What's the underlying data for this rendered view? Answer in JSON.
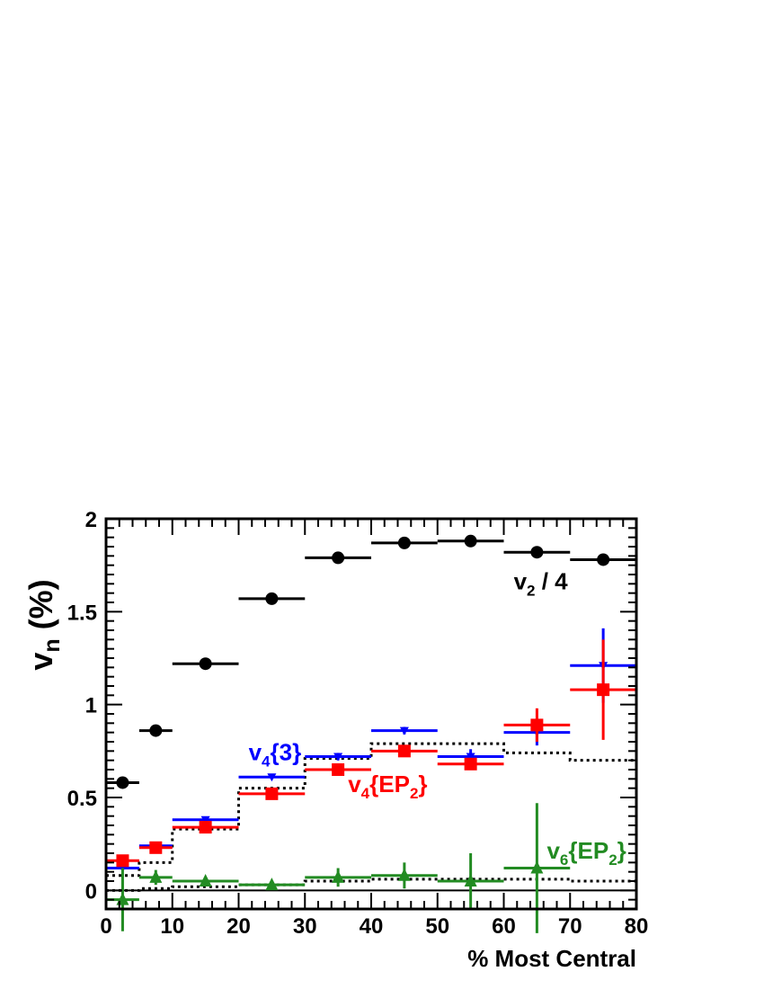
{
  "chart_data": {
    "type": "scatter",
    "xlabel": "% Most Central",
    "ylabel": "v",
    "ylabel_sub": "n",
    "ylabel_unit": " (%)",
    "xlim": [
      0,
      80
    ],
    "ylim": [
      -0.1,
      2.0
    ],
    "x_ticks": [
      0,
      10,
      20,
      30,
      40,
      50,
      60,
      70,
      80
    ],
    "x_tick_labels": [
      "0",
      "10",
      "20",
      "30",
      "40",
      "50",
      "60",
      "70",
      "80"
    ],
    "y_ticks": [
      0,
      0.5,
      1,
      1.5,
      2
    ],
    "y_tick_labels": [
      "0",
      "0.5",
      "1",
      "1.5",
      "2"
    ],
    "zero_line": true,
    "series": [
      {
        "key": "v2",
        "color": "#000000",
        "marker": "circle",
        "x": [
          2.5,
          7.5,
          15,
          25,
          35,
          45,
          55,
          65,
          75
        ],
        "xlo": [
          0,
          5,
          10,
          20,
          30,
          40,
          50,
          60,
          70
        ],
        "xhi": [
          5,
          10,
          20,
          30,
          40,
          50,
          60,
          70,
          80
        ],
        "y": [
          0.58,
          0.86,
          1.22,
          1.57,
          1.79,
          1.87,
          1.88,
          1.82,
          1.78
        ],
        "yerr": [
          0,
          0,
          0,
          0,
          0,
          0,
          0,
          0,
          0
        ]
      },
      {
        "key": "v4_3",
        "color": "#0000ff",
        "marker": "triangle-down",
        "x": [
          2.5,
          7.5,
          15,
          25,
          35,
          45,
          55,
          65,
          75
        ],
        "xlo": [
          0,
          5,
          10,
          20,
          30,
          40,
          50,
          60,
          70
        ],
        "xhi": [
          5,
          10,
          20,
          30,
          40,
          50,
          60,
          70,
          80
        ],
        "y": [
          0.12,
          0.24,
          0.38,
          0.61,
          0.72,
          0.86,
          0.72,
          0.85,
          1.21
        ],
        "yerr": [
          0,
          0,
          0,
          0,
          0.02,
          0.02,
          0.04,
          0.07,
          0.2
        ]
      },
      {
        "key": "v4_ep2",
        "color": "#ff0000",
        "marker": "square",
        "x": [
          2.5,
          7.5,
          15,
          25,
          35,
          45,
          55,
          65,
          75
        ],
        "xlo": [
          0,
          5,
          10,
          20,
          30,
          40,
          50,
          60,
          70
        ],
        "xhi": [
          5,
          10,
          20,
          30,
          40,
          50,
          60,
          70,
          80
        ],
        "y": [
          0.16,
          0.23,
          0.34,
          0.52,
          0.65,
          0.75,
          0.68,
          0.89,
          1.08
        ],
        "yerr": [
          0,
          0,
          0,
          0,
          0.01,
          0.02,
          0.03,
          0.09,
          0.27
        ]
      },
      {
        "key": "v6_ep2",
        "color": "#228b22",
        "marker": "triangle-up",
        "x": [
          2.5,
          7.5,
          15,
          25,
          35,
          45,
          55,
          65
        ],
        "xlo": [
          0,
          5,
          10,
          20,
          30,
          40,
          50,
          60
        ],
        "xhi": [
          5,
          10,
          20,
          30,
          40,
          50,
          60,
          70
        ],
        "y": [
          -0.05,
          0.07,
          0.05,
          0.03,
          0.07,
          0.08,
          0.05,
          0.12
        ],
        "yerr": [
          0.17,
          0.04,
          0.02,
          0.01,
          0.05,
          0.07,
          0.15,
          0.35
        ]
      }
    ],
    "reference_lines": {
      "style": "dotted",
      "color": "#000000",
      "upper": {
        "edges": [
          0,
          5,
          10,
          20,
          30,
          40,
          50,
          60,
          70,
          80
        ],
        "y": [
          0.08,
          0.15,
          0.33,
          0.55,
          0.71,
          0.79,
          0.79,
          0.74,
          0.7
        ]
      },
      "lower": {
        "edges": [
          0,
          5,
          10,
          20,
          30,
          40,
          50,
          60,
          70,
          80
        ],
        "y": [
          0.0,
          0.01,
          0.02,
          0.03,
          0.05,
          0.06,
          0.06,
          0.06,
          0.05
        ]
      }
    },
    "annotations": [
      {
        "key": "v2",
        "base": "v",
        "sub": "2",
        "rest": " / 4",
        "color": "#000000",
        "x": 61.5,
        "y": 1.62
      },
      {
        "key": "v4_3",
        "base": "v",
        "sub": "4",
        "rest": "{3}",
        "color": "#0000ff",
        "x": 21.5,
        "y": 0.7
      },
      {
        "key": "v4_ep2",
        "base": "v",
        "sub": "4",
        "rest": "{EP",
        "sub2": "2",
        "rest2": "}",
        "color": "#ff0000",
        "x": 36.5,
        "y": 0.53
      },
      {
        "key": "v6_ep2",
        "base": "v",
        "sub": "6",
        "rest": "{EP",
        "sub2": "2",
        "rest2": "}",
        "color": "#228b22",
        "x": 66.5,
        "y": 0.17
      }
    ]
  }
}
